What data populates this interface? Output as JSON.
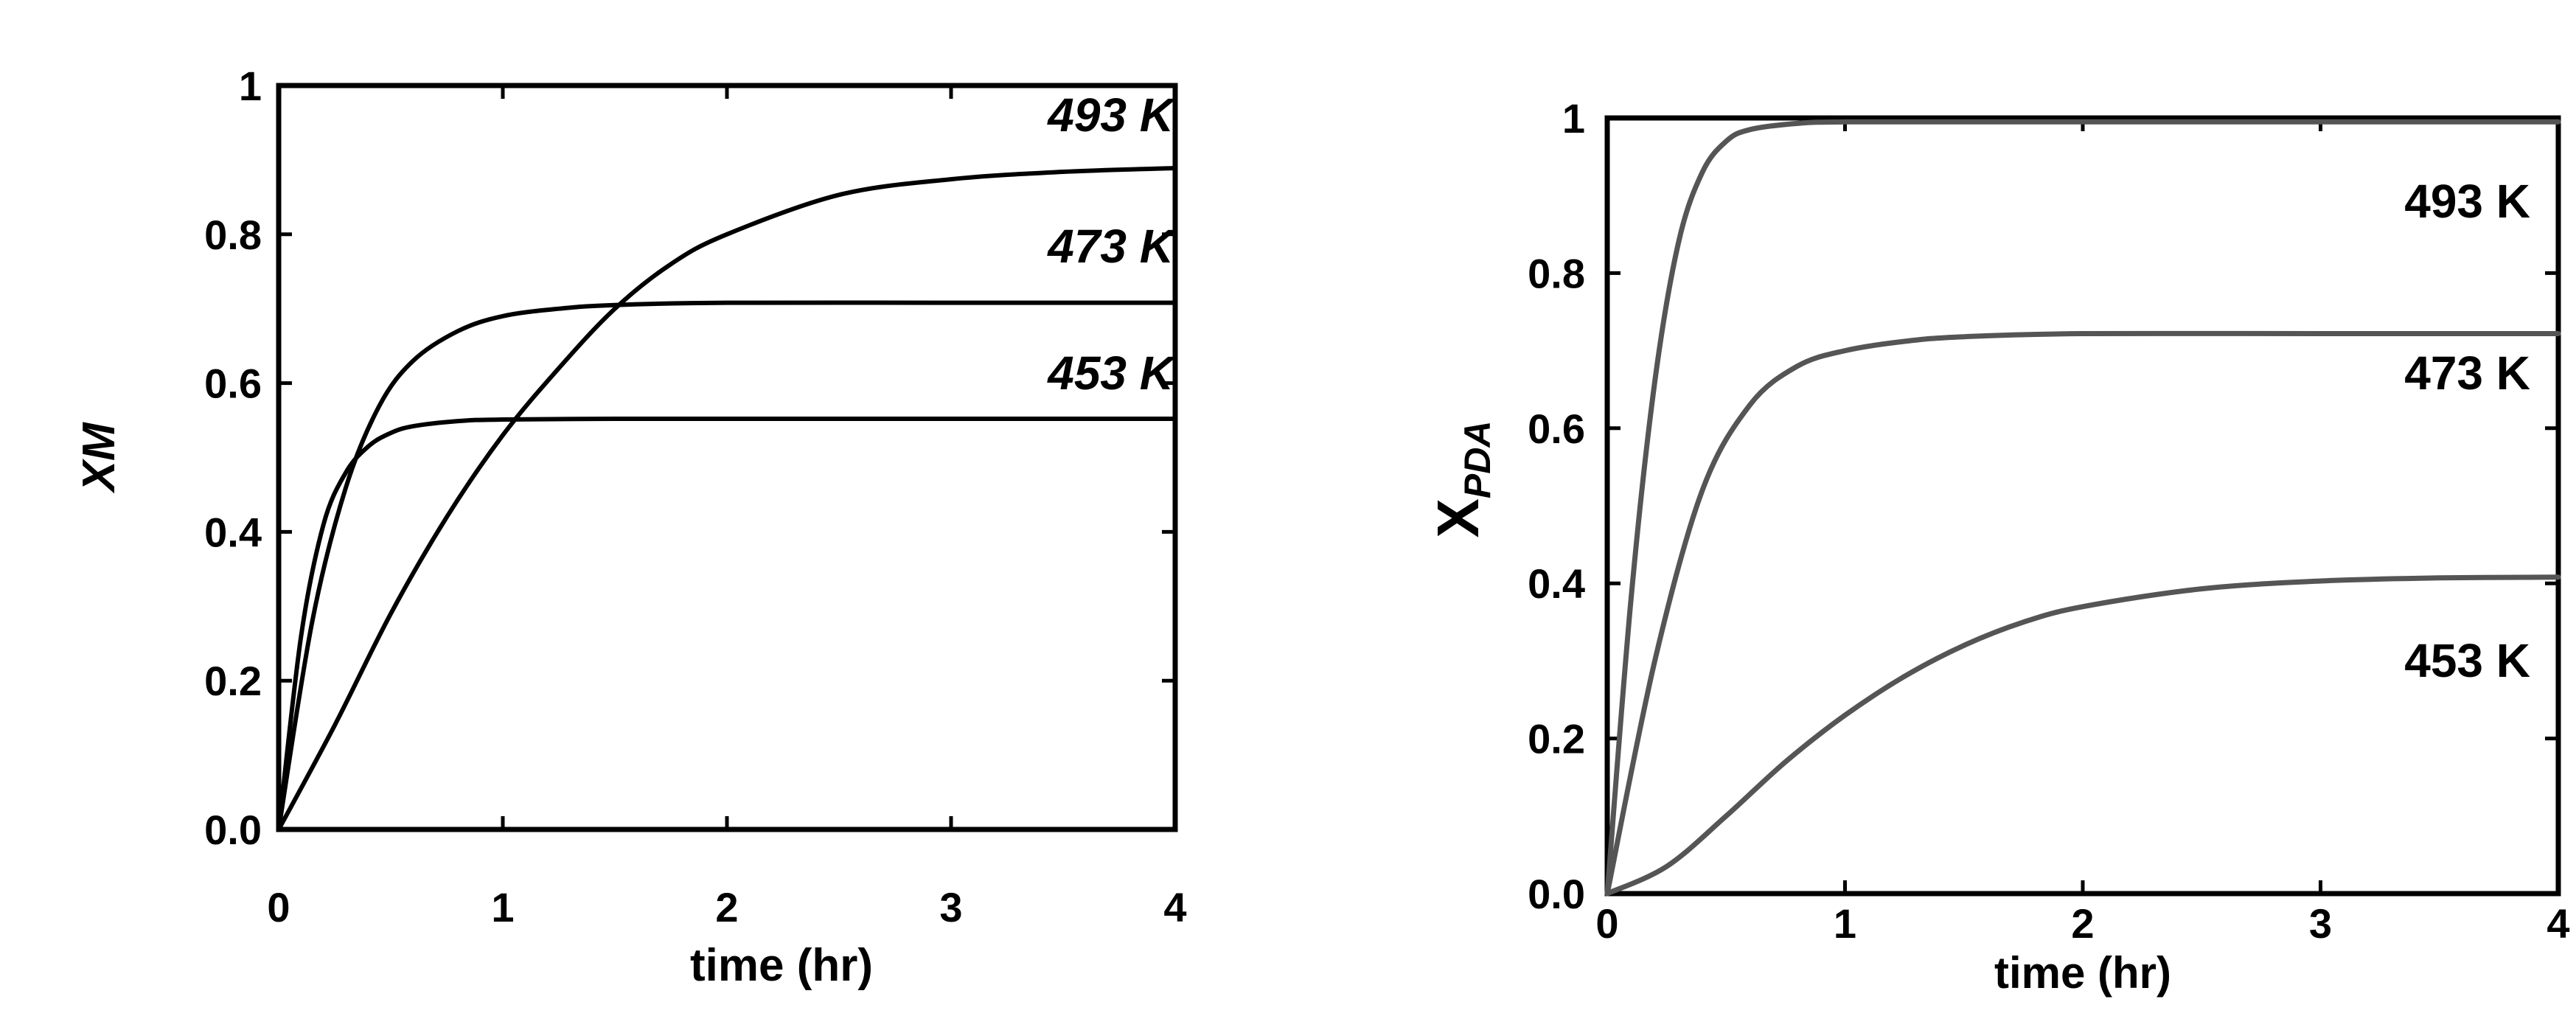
{
  "chart_data": [
    {
      "type": "line",
      "xlabel": "time (hr)",
      "ylabel": "XM",
      "xlim": [
        0,
        4
      ],
      "ylim": [
        0,
        1
      ],
      "xticks": [
        "0",
        "1",
        "2",
        "3",
        "4"
      ],
      "yticks": [
        "0.0",
        "0.2",
        "0.4",
        "0.6",
        "0.8",
        "1"
      ],
      "grid": false,
      "series": [
        {
          "name": "493 K",
          "x": [
            0,
            0.25,
            0.5,
            0.75,
            1.0,
            1.25,
            1.5,
            1.75,
            2.0,
            2.5,
            3.0,
            3.5,
            4.0
          ],
          "y": [
            0,
            0.14,
            0.29,
            0.42,
            0.53,
            0.62,
            0.7,
            0.76,
            0.8,
            0.853,
            0.874,
            0.884,
            0.889
          ]
        },
        {
          "name": "473 K",
          "x": [
            0,
            0.15,
            0.3,
            0.45,
            0.6,
            0.8,
            1.0,
            1.25,
            1.5,
            2.0,
            3.0,
            4.0
          ],
          "y": [
            0,
            0.28,
            0.46,
            0.57,
            0.63,
            0.67,
            0.69,
            0.7,
            0.705,
            0.708,
            0.708,
            0.708
          ]
        },
        {
          "name": "453 K",
          "x": [
            0,
            0.1,
            0.2,
            0.3,
            0.4,
            0.5,
            0.6,
            0.8,
            1.0,
            1.5,
            2.0,
            3.0,
            4.0
          ],
          "y": [
            0,
            0.26,
            0.41,
            0.48,
            0.515,
            0.533,
            0.542,
            0.549,
            0.551,
            0.552,
            0.552,
            0.552,
            0.552
          ]
        }
      ]
    },
    {
      "type": "line",
      "xlabel": "time (hr)",
      "ylabel": "XPDA",
      "xlim": [
        0,
        4
      ],
      "ylim": [
        0,
        1
      ],
      "xticks": [
        "0",
        "1",
        "2",
        "3",
        "4"
      ],
      "yticks": [
        "0.0",
        "0.2",
        "0.4",
        "0.6",
        "0.8",
        "1"
      ],
      "grid": false,
      "series": [
        {
          "name": "493 K",
          "x": [
            0,
            0.1,
            0.2,
            0.3,
            0.4,
            0.5,
            0.6,
            0.8,
            1.0,
            1.5,
            2.0,
            3.0,
            4.0
          ],
          "y": [
            0,
            0.38,
            0.66,
            0.84,
            0.93,
            0.97,
            0.985,
            0.993,
            0.995,
            0.995,
            0.995,
            0.995,
            0.995
          ]
        },
        {
          "name": "473 K",
          "x": [
            0,
            0.2,
            0.4,
            0.6,
            0.8,
            1.0,
            1.25,
            1.5,
            2.0,
            3.0,
            4.0
          ],
          "y": [
            0,
            0.3,
            0.52,
            0.63,
            0.68,
            0.7,
            0.712,
            0.718,
            0.722,
            0.722,
            0.722
          ],
          "sub": null
        },
        {
          "name": "453 K",
          "x": [
            0,
            0.25,
            0.5,
            0.75,
            1.0,
            1.25,
            1.5,
            1.75,
            2.0,
            2.5,
            3.0,
            3.5,
            4.0
          ],
          "y": [
            0,
            0.035,
            0.1,
            0.17,
            0.23,
            0.28,
            0.32,
            0.35,
            0.37,
            0.393,
            0.403,
            0.407,
            0.408
          ]
        }
      ]
    }
  ]
}
